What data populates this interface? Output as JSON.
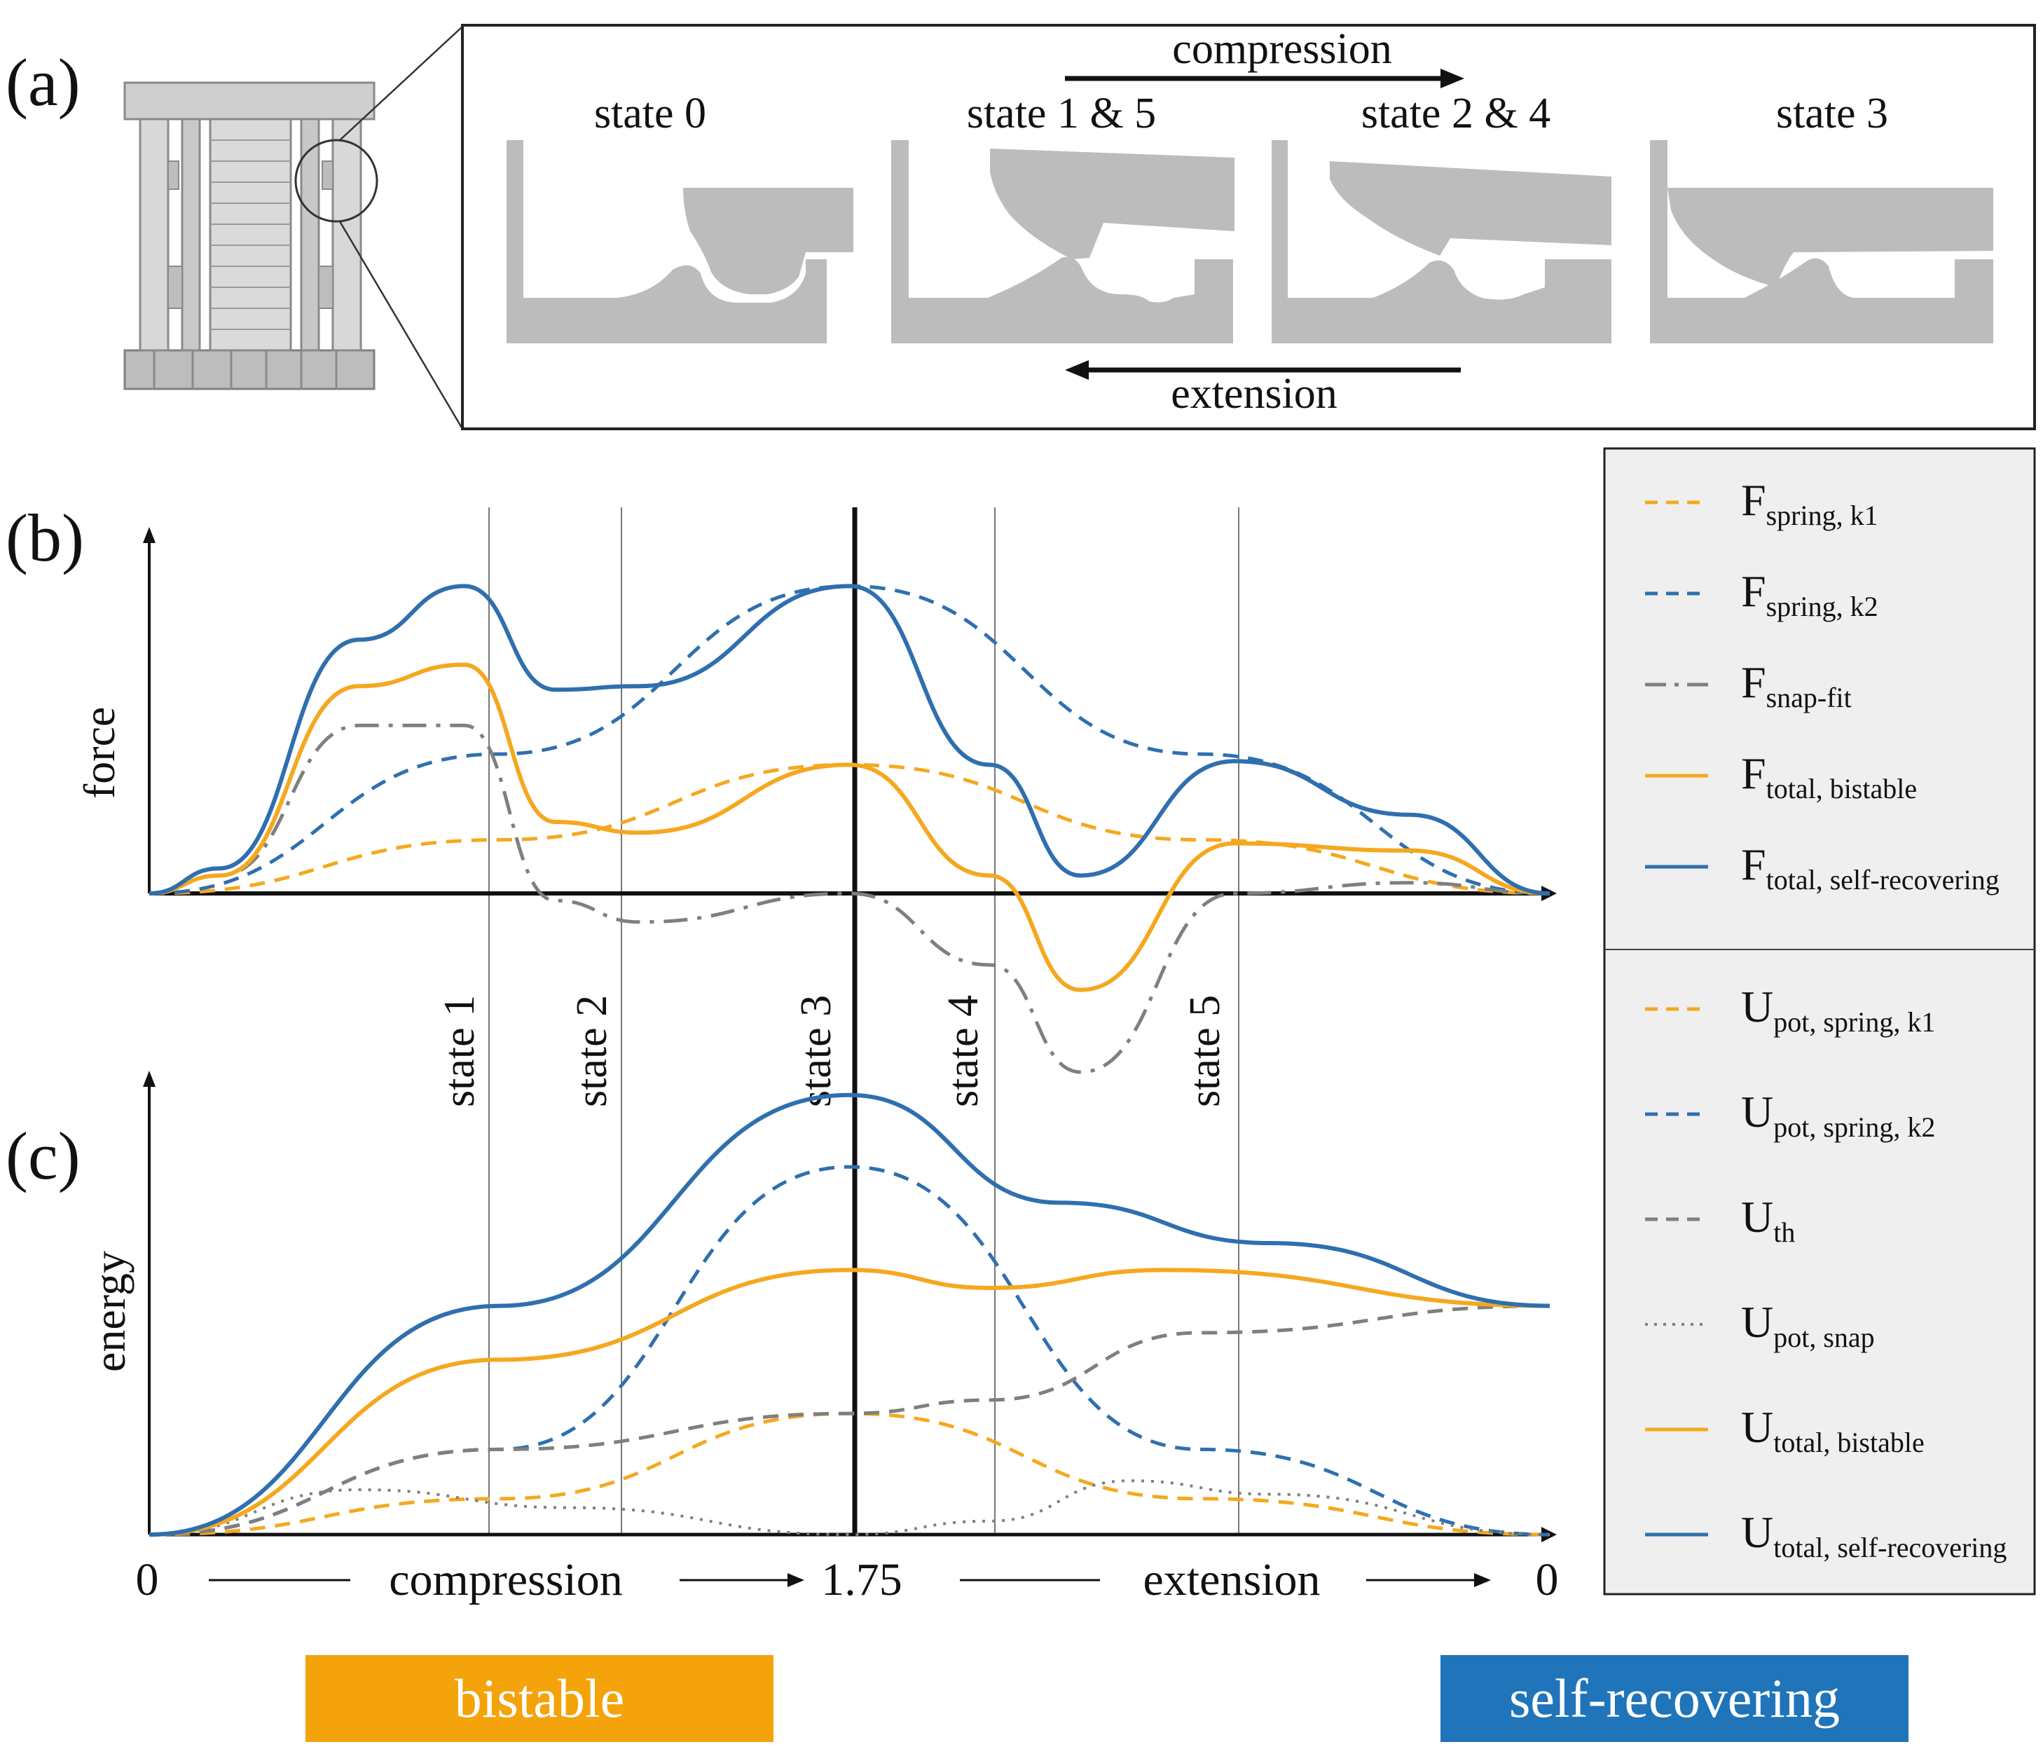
{
  "panel_labels": {
    "a": "(a)",
    "b": "(b)",
    "c": "(c)"
  },
  "panel_a": {
    "arrow_top": "compression",
    "arrow_bottom": "extension",
    "states": [
      "state 0",
      "state 1 & 5",
      "state 2 & 4",
      "state 3"
    ]
  },
  "axes": {
    "force_ylabel": "force",
    "energy_ylabel": "energy",
    "x_ticks": {
      "start": "0",
      "mid": "1.75",
      "end": "0"
    },
    "x_phase_left": "compression",
    "x_phase_right": "extension"
  },
  "state_markers": [
    "state 1",
    "state 2",
    "state 3",
    "state 4",
    "state 5"
  ],
  "badges": {
    "left": "bistable",
    "right": "self-recovering"
  },
  "colors": {
    "orange": "#f5a81f",
    "blue": "#2f6faf",
    "gray": "#7f7f7f",
    "badge_orange": "#f5a30a",
    "badge_blue": "#1f74ba",
    "legend_bg": "#efefef"
  },
  "legend": {
    "force": [
      {
        "main": "F",
        "sub": "spring, k1",
        "color": "#f5a81f",
        "style": "dashed"
      },
      {
        "main": "F",
        "sub": "spring, k2",
        "color": "#2f6faf",
        "style": "dashed"
      },
      {
        "main": "F",
        "sub": "snap-fit",
        "color": "#7f7f7f",
        "style": "dashdot"
      },
      {
        "main": "F",
        "sub": "total, bistable",
        "color": "#f5a81f",
        "style": "solid"
      },
      {
        "main": "F",
        "sub": "total, self-recovering",
        "color": "#2f6faf",
        "style": "solid"
      }
    ],
    "energy": [
      {
        "main": "U",
        "sub": "pot, spring, k1",
        "color": "#f5a81f",
        "style": "dashed"
      },
      {
        "main": "U",
        "sub": "pot, spring, k2",
        "color": "#2f6faf",
        "style": "dashed"
      },
      {
        "main": "U",
        "sub": "th",
        "color": "#7f7f7f",
        "style": "dashed"
      },
      {
        "main": "U",
        "sub": "pot, snap",
        "color": "#7f7f7f",
        "style": "dotted"
      },
      {
        "main": "U",
        "sub": "total, bistable",
        "color": "#f5a81f",
        "style": "solid"
      },
      {
        "main": "U",
        "sub": "total, self-recovering",
        "color": "#2f6faf",
        "style": "solid"
      }
    ]
  },
  "chart_data": [
    {
      "type": "line",
      "x_ticks": [
        "0",
        "1.75",
        "0"
      ],
      "ylabel": "force",
      "series": [
        {
          "name": "F spring, k1",
          "values": [
            [
              0,
              0
            ],
            [
              0.5,
              0.15
            ],
            [
              1,
              0.36
            ],
            [
              1.5,
              0.15
            ],
            [
              2,
              0
            ]
          ]
        },
        {
          "name": "F spring, k2",
          "values": [
            [
              0,
              0
            ],
            [
              0.5,
              0.39
            ],
            [
              1,
              0.86
            ],
            [
              1.5,
              0.39
            ],
            [
              2,
              0
            ]
          ]
        },
        {
          "name": "F snap-fit",
          "values": [
            [
              0,
              0
            ],
            [
              0.1,
              0.05
            ],
            [
              0.3,
              0.47
            ],
            [
              0.45,
              0.47
            ],
            [
              0.58,
              -0.02
            ],
            [
              0.7,
              -0.08
            ],
            [
              1,
              0
            ],
            [
              1.2,
              -0.2
            ],
            [
              1.33,
              -0.5
            ],
            [
              1.55,
              0
            ],
            [
              1.8,
              0.03
            ],
            [
              2,
              0
            ]
          ]
        },
        {
          "name": "F total, bistable",
          "values": [
            [
              0,
              0
            ],
            [
              0.1,
              0.05
            ],
            [
              0.3,
              0.58
            ],
            [
              0.45,
              0.64
            ],
            [
              0.58,
              0.2
            ],
            [
              0.7,
              0.17
            ],
            [
              1,
              0.36
            ],
            [
              1.2,
              0.05
            ],
            [
              1.33,
              -0.27
            ],
            [
              1.55,
              0.14
            ],
            [
              1.8,
              0.12
            ],
            [
              2,
              0
            ]
          ]
        },
        {
          "name": "F total, self-recovering",
          "values": [
            [
              0,
              0
            ],
            [
              0.1,
              0.07
            ],
            [
              0.3,
              0.71
            ],
            [
              0.45,
              0.86
            ],
            [
              0.58,
              0.57
            ],
            [
              0.7,
              0.58
            ],
            [
              1,
              0.86
            ],
            [
              1.2,
              0.36
            ],
            [
              1.33,
              0.05
            ],
            [
              1.55,
              0.37
            ],
            [
              1.8,
              0.22
            ],
            [
              2,
              0
            ]
          ]
        }
      ]
    },
    {
      "type": "line",
      "x_ticks": [
        "0",
        "1.75",
        "0"
      ],
      "ylabel": "energy",
      "series": [
        {
          "name": "U pot, spring, k1",
          "values": [
            [
              0,
              0
            ],
            [
              0.5,
              0.08
            ],
            [
              1,
              0.27
            ],
            [
              1.5,
              0.08
            ],
            [
              2,
              0
            ]
          ]
        },
        {
          "name": "U pot, spring, k2",
          "values": [
            [
              0,
              0
            ],
            [
              0.5,
              0.19
            ],
            [
              1,
              0.82
            ],
            [
              1.5,
              0.19
            ],
            [
              2,
              0
            ]
          ]
        },
        {
          "name": "U th",
          "values": [
            [
              0,
              0
            ],
            [
              0.5,
              0.19
            ],
            [
              1,
              0.27
            ],
            [
              1.2,
              0.3
            ],
            [
              1.5,
              0.45
            ],
            [
              2,
              0.51
            ]
          ]
        },
        {
          "name": "U pot, snap",
          "values": [
            [
              0,
              0
            ],
            [
              0.3,
              0.1
            ],
            [
              0.6,
              0.06
            ],
            [
              1,
              0
            ],
            [
              1.2,
              0.03
            ],
            [
              1.4,
              0.12
            ],
            [
              1.6,
              0.09
            ],
            [
              2,
              0
            ]
          ]
        },
        {
          "name": "U total, bistable",
          "values": [
            [
              0,
              0
            ],
            [
              0.5,
              0.39
            ],
            [
              1,
              0.59
            ],
            [
              1.2,
              0.55
            ],
            [
              1.45,
              0.59
            ],
            [
              2,
              0.51
            ]
          ]
        },
        {
          "name": "U total, self-recovering",
          "values": [
            [
              0,
              0
            ],
            [
              0.5,
              0.51
            ],
            [
              1,
              0.98
            ],
            [
              1.3,
              0.74
            ],
            [
              1.6,
              0.65
            ],
            [
              2,
              0.51
            ]
          ]
        }
      ]
    }
  ]
}
